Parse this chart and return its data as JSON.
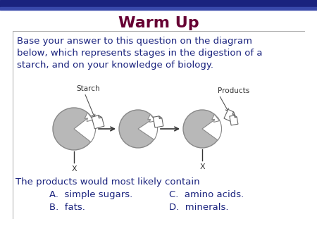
{
  "title": "Warm Up",
  "title_color": "#660033",
  "title_fontsize": 16,
  "bg_color": "#ffffff",
  "border_top_color": "#1a237e",
  "body_text": "Base your answer to this question on the diagram\nbelow, which represents stages in the digestion of a\nstarch, and on your knowledge of biology.",
  "body_color": "#1a237e",
  "body_fontsize": 9.5,
  "starch_label": "Starch",
  "products_label": "Products",
  "label_fontsize": 7.5,
  "label_color": "#333333",
  "x_label": "X",
  "x_label_color": "#333333",
  "x_label_fontsize": 8,
  "circle_color": "#b8b8b8",
  "circle_edge_color": "#888888",
  "arrow_color": "#333333",
  "question_text": "The products would most likely contain",
  "question_color": "#1a237e",
  "question_fontsize": 9.5,
  "choices": [
    [
      "A.  simple sugars.",
      "C.  amino acids."
    ],
    [
      "B.  fats.",
      "D.  minerals."
    ]
  ],
  "choices_color": "#1a237e",
  "choices_fontsize": 9.5,
  "figsize": [
    4.5,
    3.38
  ],
  "dpi": 100
}
